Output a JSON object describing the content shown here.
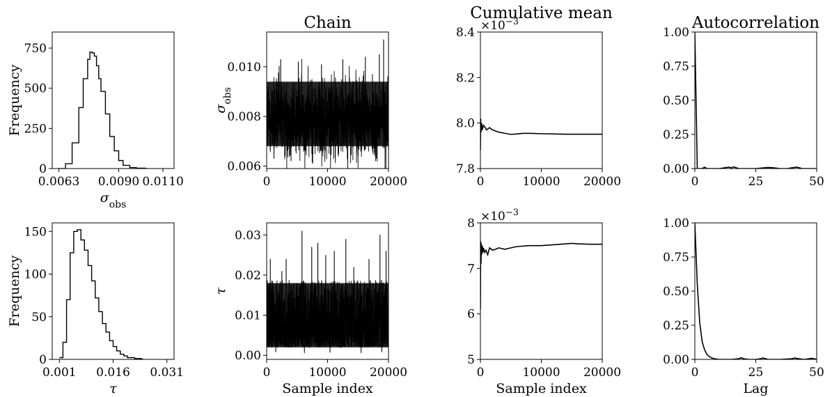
{
  "colors": {
    "line": "#000000",
    "background": "#ffffff"
  },
  "chart_data": [
    {
      "id": "hist-sigma",
      "type": "histogram",
      "title": "",
      "xlabel": "σ_obs",
      "ylabel": "Frequency",
      "xlim": [
        0.006,
        0.0115
      ],
      "ylim": [
        0,
        850
      ],
      "xticks": [
        0.0063,
        0.009,
        0.011
      ],
      "xtick_labels": [
        "0.0063",
        "0.0090",
        "0.0110"
      ],
      "yticks": [
        0,
        250,
        500,
        750
      ],
      "ytick_labels": [
        "0",
        "250",
        "500",
        "750"
      ],
      "x": [
        0.0063,
        0.0066,
        0.0069,
        0.0072,
        0.0074,
        0.0076,
        0.0077,
        0.0078,
        0.0079,
        0.008,
        0.0081,
        0.0082,
        0.0084,
        0.0086,
        0.0088,
        0.009,
        0.0092,
        0.0095,
        0.0098,
        0.0102
      ],
      "values": [
        0,
        30,
        160,
        380,
        560,
        680,
        725,
        720,
        700,
        640,
        560,
        480,
        340,
        200,
        110,
        50,
        20,
        6,
        2,
        0
      ]
    },
    {
      "id": "trace-sigma",
      "type": "line",
      "title": "Chain",
      "xlabel": "",
      "ylabel": "σ_obs",
      "xlim": [
        0,
        20000
      ],
      "ylim": [
        0.0059,
        0.0114
      ],
      "xticks": [
        0,
        10000,
        20000
      ],
      "xtick_labels": [
        "0",
        "10000",
        "20000"
      ],
      "yticks": [
        0.006,
        0.008,
        0.01
      ],
      "ytick_labels": [
        "0.006",
        "0.008",
        "0.010"
      ],
      "band_mean": 0.0079,
      "band_lower": 0.0068,
      "band_upper": 0.0094,
      "spikes_max": [
        [
          2300,
          0.0103
        ],
        [
          5200,
          0.0102
        ],
        [
          9000,
          0.0101
        ],
        [
          12500,
          0.0103
        ],
        [
          16200,
          0.0104
        ],
        [
          18500,
          0.0105
        ],
        [
          19200,
          0.0111
        ]
      ],
      "spikes_min": [
        [
          1200,
          0.0063
        ],
        [
          4000,
          0.0062
        ],
        [
          7500,
          0.0064
        ],
        [
          11000,
          0.0063
        ],
        [
          15000,
          0.0064
        ],
        [
          18000,
          0.0063
        ]
      ]
    },
    {
      "id": "cummean-sigma",
      "type": "line",
      "title": "Cumulative mean",
      "xlabel": "",
      "ylabel": "",
      "multiplier": "×10−3",
      "xlim": [
        0,
        20000
      ],
      "ylim": [
        7.8,
        8.4
      ],
      "xticks": [
        0,
        10000,
        20000
      ],
      "xtick_labels": [
        "0",
        "10000",
        "20000"
      ],
      "yticks": [
        7.8,
        8.0,
        8.2,
        8.4
      ],
      "ytick_labels": [
        "7.8",
        "8.0",
        "8.2",
        "8.4"
      ],
      "x": [
        0,
        50,
        100,
        200,
        300,
        500,
        800,
        1000,
        1500,
        2000,
        3000,
        4000,
        5000,
        6000,
        7000,
        8000,
        10000,
        12000,
        14000,
        16000,
        18000,
        20000
      ],
      "y": [
        7.88,
        8.02,
        7.96,
        8.0,
        7.97,
        7.99,
        7.98,
        7.97,
        7.98,
        7.97,
        7.96,
        7.955,
        7.95,
        7.952,
        7.955,
        7.955,
        7.953,
        7.952,
        7.951,
        7.951,
        7.951,
        7.951
      ]
    },
    {
      "id": "acf-sigma",
      "type": "line",
      "title": "Autocorrelation",
      "xlabel": "",
      "ylabel": "",
      "xlim": [
        0,
        50
      ],
      "ylim": [
        0,
        1.0
      ],
      "xticks": [
        0,
        25,
        50
      ],
      "xtick_labels": [
        "0",
        "25",
        "50"
      ],
      "yticks": [
        0,
        0.25,
        0.5,
        0.75,
        1.0
      ],
      "ytick_labels": [
        "0.00",
        "0.25",
        "0.50",
        "0.75",
        "1.00"
      ],
      "x": [
        0,
        1,
        2,
        3,
        4,
        5,
        6,
        8,
        10,
        12,
        14,
        15,
        16,
        18,
        20,
        22,
        25,
        28,
        30,
        32,
        35,
        38,
        40,
        42,
        44,
        46,
        48,
        50
      ],
      "y": [
        1.0,
        0.0,
        0.0,
        0.0,
        0.01,
        0.0,
        0.0,
        0.0,
        0.0,
        0.005,
        0.01,
        0.005,
        0.012,
        0.0,
        0.0,
        0.0,
        0.0,
        0.005,
        0.008,
        0.006,
        0.0,
        0.0,
        0.006,
        0.01,
        0.0,
        0.0,
        0.0,
        0.0
      ]
    },
    {
      "id": "hist-tau",
      "type": "histogram",
      "title": "",
      "xlabel": "τ",
      "ylabel": "Frequency",
      "xlim": [
        -0.001,
        0.033
      ],
      "ylim": [
        0,
        160
      ],
      "xticks": [
        0.001,
        0.016,
        0.031
      ],
      "xtick_labels": [
        "0.001",
        "0.016",
        "0.031"
      ],
      "yticks": [
        0,
        50,
        100,
        150
      ],
      "ytick_labels": [
        "0",
        "50",
        "100",
        "150"
      ],
      "x": [
        0.001,
        0.002,
        0.003,
        0.004,
        0.005,
        0.006,
        0.007,
        0.008,
        0.009,
        0.01,
        0.011,
        0.012,
        0.013,
        0.014,
        0.015,
        0.016,
        0.017,
        0.018,
        0.019,
        0.02,
        0.022,
        0.024
      ],
      "values": [
        2,
        20,
        70,
        125,
        150,
        152,
        140,
        128,
        110,
        92,
        72,
        56,
        42,
        32,
        22,
        15,
        10,
        6,
        4,
        2,
        1,
        0
      ]
    },
    {
      "id": "trace-tau",
      "type": "line",
      "title": "",
      "xlabel": "Sample index",
      "ylabel": "τ",
      "xlim": [
        0,
        20000
      ],
      "ylim": [
        -0.001,
        0.033
      ],
      "xticks": [
        0,
        10000,
        20000
      ],
      "xtick_labels": [
        "0",
        "10000",
        "20000"
      ],
      "yticks": [
        0.0,
        0.01,
        0.02,
        0.03
      ],
      "ytick_labels": [
        "0.00",
        "0.01",
        "0.02",
        "0.03"
      ],
      "band_mean": 0.009,
      "band_lower": 0.002,
      "band_upper": 0.018,
      "spikes_max": [
        [
          600,
          0.024
        ],
        [
          2500,
          0.021
        ],
        [
          3200,
          0.024
        ],
        [
          5800,
          0.031
        ],
        [
          7400,
          0.027
        ],
        [
          8400,
          0.028
        ],
        [
          9700,
          0.025
        ],
        [
          11100,
          0.026
        ],
        [
          13000,
          0.029
        ],
        [
          14300,
          0.022
        ],
        [
          16800,
          0.024
        ],
        [
          18600,
          0.03
        ],
        [
          19600,
          0.026
        ]
      ],
      "spikes_min": [
        [
          1500,
          0.0008
        ],
        [
          6200,
          0.0006
        ],
        [
          10400,
          0.0007
        ],
        [
          15500,
          0.0006
        ],
        [
          18900,
          0.0008
        ]
      ]
    },
    {
      "id": "cummean-tau",
      "type": "line",
      "title": "",
      "xlabel": "Sample index",
      "ylabel": "",
      "multiplier": "×10−3",
      "xlim": [
        0,
        20000
      ],
      "ylim": [
        5,
        8
      ],
      "xticks": [
        0,
        10000,
        20000
      ],
      "xtick_labels": [
        "0",
        "10000",
        "20000"
      ],
      "yticks": [
        5,
        6,
        7,
        8
      ],
      "ytick_labels": [
        "5",
        "6",
        "7",
        "8"
      ],
      "x": [
        0,
        50,
        100,
        150,
        200,
        300,
        400,
        500,
        700,
        900,
        1200,
        1500,
        2000,
        2500,
        3000,
        4000,
        5000,
        6000,
        8000,
        10000,
        12000,
        14000,
        15000,
        16000,
        18000,
        20000
      ],
      "y": [
        6.1,
        7.6,
        7.1,
        7.55,
        7.3,
        7.5,
        7.35,
        7.45,
        7.35,
        7.4,
        7.3,
        7.45,
        7.4,
        7.42,
        7.45,
        7.42,
        7.45,
        7.48,
        7.5,
        7.5,
        7.52,
        7.54,
        7.55,
        7.54,
        7.53,
        7.53
      ]
    },
    {
      "id": "acf-tau",
      "type": "line",
      "title": "",
      "xlabel": "Lag",
      "ylabel": "",
      "xlim": [
        0,
        50
      ],
      "ylim": [
        0,
        1.0
      ],
      "xticks": [
        0,
        25,
        50
      ],
      "xtick_labels": [
        "0",
        "25",
        "50"
      ],
      "yticks": [
        0,
        0.25,
        0.5,
        0.75,
        1.0
      ],
      "ytick_labels": [
        "0.00",
        "0.25",
        "0.50",
        "0.75",
        "1.00"
      ],
      "x": [
        0,
        1,
        2,
        3,
        4,
        5,
        6,
        7,
        8,
        10,
        12,
        15,
        18,
        19,
        20,
        22,
        25,
        27,
        28,
        30,
        35,
        40,
        41,
        42,
        45,
        48,
        50
      ],
      "y": [
        1.0,
        0.55,
        0.27,
        0.13,
        0.07,
        0.035,
        0.02,
        0.01,
        0.005,
        0.0,
        0.0,
        0.0,
        0.005,
        0.012,
        0.005,
        0.0,
        0.0,
        0.005,
        0.01,
        0.0,
        0.0,
        0.005,
        0.01,
        0.006,
        0.0,
        0.008,
        0.0
      ]
    }
  ]
}
